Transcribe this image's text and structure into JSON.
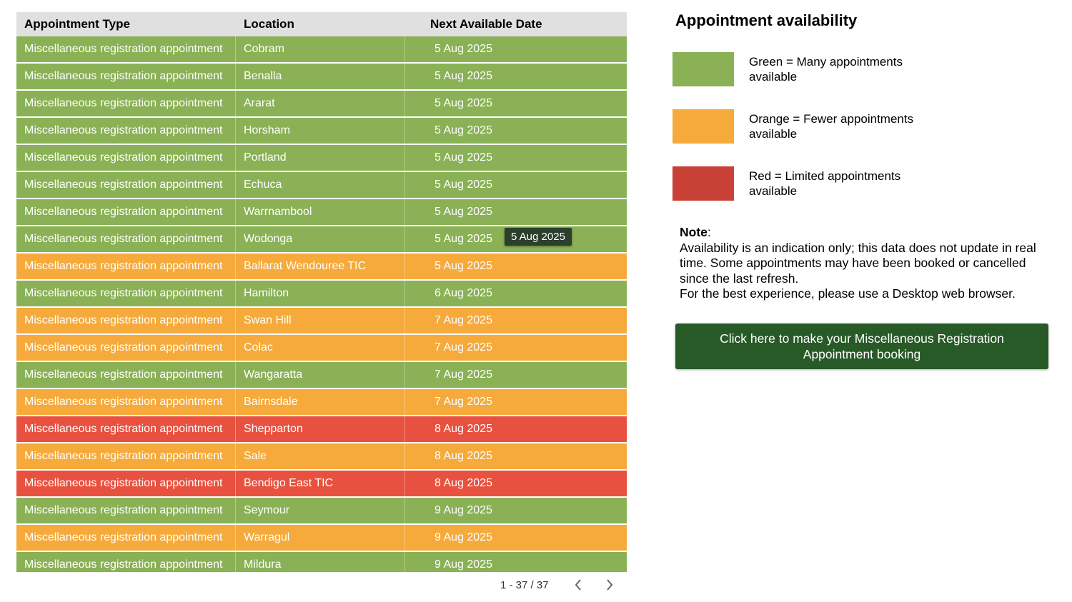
{
  "colors": {
    "green": "#8ab155",
    "orange": "#f5aa3b",
    "red": "#e8513f",
    "header_bg": "#e0e0e0",
    "button_bg": "#285a27"
  },
  "table": {
    "headers": [
      "Appointment Type",
      "Location",
      "Next Available Date"
    ],
    "rows": [
      {
        "type": "Miscellaneous registration appointment",
        "location": "Cobram",
        "date": "5 Aug 2025",
        "status": "green"
      },
      {
        "type": "Miscellaneous registration appointment",
        "location": "Benalla",
        "date": "5 Aug 2025",
        "status": "green"
      },
      {
        "type": "Miscellaneous registration appointment",
        "location": "Ararat",
        "date": "5 Aug 2025",
        "status": "green"
      },
      {
        "type": "Miscellaneous registration appointment",
        "location": "Horsham",
        "date": "5 Aug 2025",
        "status": "green"
      },
      {
        "type": "Miscellaneous registration appointment",
        "location": "Portland",
        "date": "5 Aug 2025",
        "status": "green"
      },
      {
        "type": "Miscellaneous registration appointment",
        "location": "Echuca",
        "date": "5 Aug 2025",
        "status": "green"
      },
      {
        "type": "Miscellaneous registration appointment",
        "location": "Warrnambool",
        "date": "5 Aug 2025",
        "status": "green"
      },
      {
        "type": "Miscellaneous registration appointment",
        "location": "Wodonga",
        "date": "5 Aug 2025",
        "status": "green"
      },
      {
        "type": "Miscellaneous registration appointment",
        "location": "Ballarat Wendouree TIC",
        "date": "5 Aug 2025",
        "status": "orange"
      },
      {
        "type": "Miscellaneous registration appointment",
        "location": "Hamilton",
        "date": "6 Aug 2025",
        "status": "green"
      },
      {
        "type": "Miscellaneous registration appointment",
        "location": "Swan Hill",
        "date": "7 Aug 2025",
        "status": "orange"
      },
      {
        "type": "Miscellaneous registration appointment",
        "location": "Colac",
        "date": "7 Aug 2025",
        "status": "orange"
      },
      {
        "type": "Miscellaneous registration appointment",
        "location": "Wangaratta",
        "date": "7 Aug 2025",
        "status": "green"
      },
      {
        "type": "Miscellaneous registration appointment",
        "location": "Bairnsdale",
        "date": "7 Aug 2025",
        "status": "orange"
      },
      {
        "type": "Miscellaneous registration appointment",
        "location": "Shepparton",
        "date": "8 Aug 2025",
        "status": "red"
      },
      {
        "type": "Miscellaneous registration appointment",
        "location": "Sale",
        "date": "8 Aug 2025",
        "status": "orange"
      },
      {
        "type": "Miscellaneous registration appointment",
        "location": "Bendigo East TIC",
        "date": "8 Aug 2025",
        "status": "red"
      },
      {
        "type": "Miscellaneous registration appointment",
        "location": "Seymour",
        "date": "9 Aug 2025",
        "status": "green"
      },
      {
        "type": "Miscellaneous registration appointment",
        "location": "Warragul",
        "date": "9 Aug 2025",
        "status": "orange"
      },
      {
        "type": "Miscellaneous registration appointment",
        "location": "Mildura",
        "date": "9 Aug 2025",
        "status": "green"
      }
    ],
    "tooltip": "5 Aug 2025"
  },
  "pagination": {
    "label": "1 - 37 / 37",
    "prev_icon": "chevron-left-icon",
    "next_icon": "chevron-right-icon"
  },
  "legend": {
    "title": "Appointment availability",
    "items": [
      {
        "status": "green",
        "text": "Green = Many appointments available"
      },
      {
        "status": "orange",
        "text": "Orange = Fewer appointments available"
      },
      {
        "status": "red",
        "text": "Red = Limited appointments available"
      }
    ]
  },
  "note": {
    "label": "Note",
    "line1": "Availability is an indication only; this data does not update in real time. Some appointments may have been booked or cancelled since the last refresh.",
    "line2": "For the best experience, please use a Desktop web browser."
  },
  "cta": {
    "label": "Click here to make your Miscellaneous Registration Appointment booking"
  }
}
